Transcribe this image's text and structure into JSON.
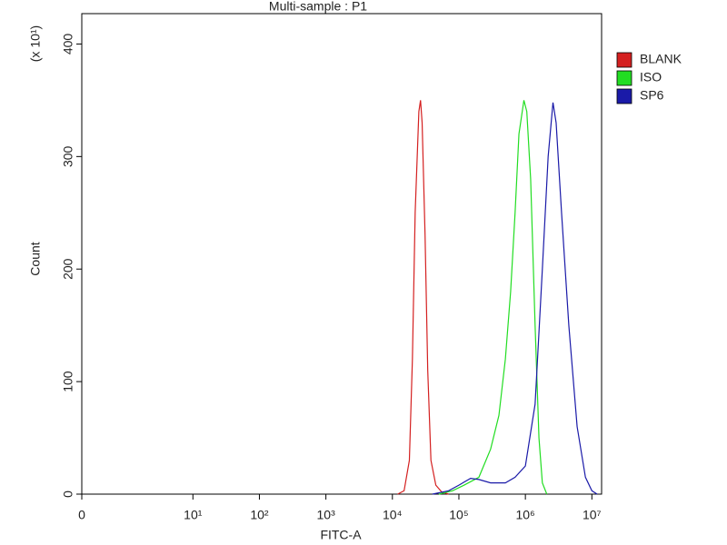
{
  "chart_data": {
    "type": "line",
    "title": "Multi-sample : P1",
    "x_label": "FITC-A",
    "y_label": "Count",
    "y_annotation": "(x 10¹)",
    "xscale": "biexponential",
    "xlim": [
      0,
      14000000
    ],
    "xticks": [
      0,
      {
        "value": 10,
        "label": "10¹"
      },
      {
        "value": 100,
        "label": "10²"
      },
      {
        "value": 1000,
        "label": "10³"
      },
      {
        "value": 10000,
        "label": "10⁴"
      },
      {
        "value": 100000,
        "label": "10⁵"
      },
      {
        "value": 1000000,
        "label": "10⁶"
      },
      {
        "value": 10000000,
        "label": "10⁷"
      }
    ],
    "ylim": [
      0,
      427
    ],
    "yticks": [
      0,
      100,
      200,
      300,
      400
    ],
    "legend": "right",
    "series": [
      {
        "name": "BLANK",
        "color": "#d42020",
        "x": [
          12000,
          15000,
          18000,
          20000,
          22000,
          25000,
          26500,
          28000,
          31000,
          34000,
          38000,
          45000,
          55000,
          70000
        ],
        "values": [
          0,
          3,
          30,
          120,
          250,
          340,
          350,
          330,
          230,
          110,
          30,
          8,
          2,
          0
        ]
      },
      {
        "name": "ISO",
        "color": "#22dd22",
        "x": [
          50000,
          80000,
          120000,
          200000,
          300000,
          400000,
          500000,
          600000,
          700000,
          800000,
          950000,
          1050000,
          1200000,
          1400000,
          1600000,
          1800000,
          2100000
        ],
        "values": [
          0,
          3,
          8,
          15,
          40,
          70,
          120,
          180,
          250,
          320,
          350,
          340,
          280,
          150,
          50,
          10,
          0
        ]
      },
      {
        "name": "SP6",
        "color": "#1a1aa8",
        "x": [
          40000,
          70000,
          100000,
          150000,
          200000,
          300000,
          500000,
          700000,
          1000000,
          1400000,
          1800000,
          2200000,
          2600000,
          2900000,
          3500000,
          4500000,
          6000000,
          8000000,
          10000000,
          12000000
        ],
        "values": [
          0,
          3,
          8,
          14,
          13,
          10,
          10,
          15,
          25,
          80,
          200,
          300,
          348,
          330,
          250,
          150,
          60,
          15,
          3,
          0
        ]
      }
    ]
  }
}
